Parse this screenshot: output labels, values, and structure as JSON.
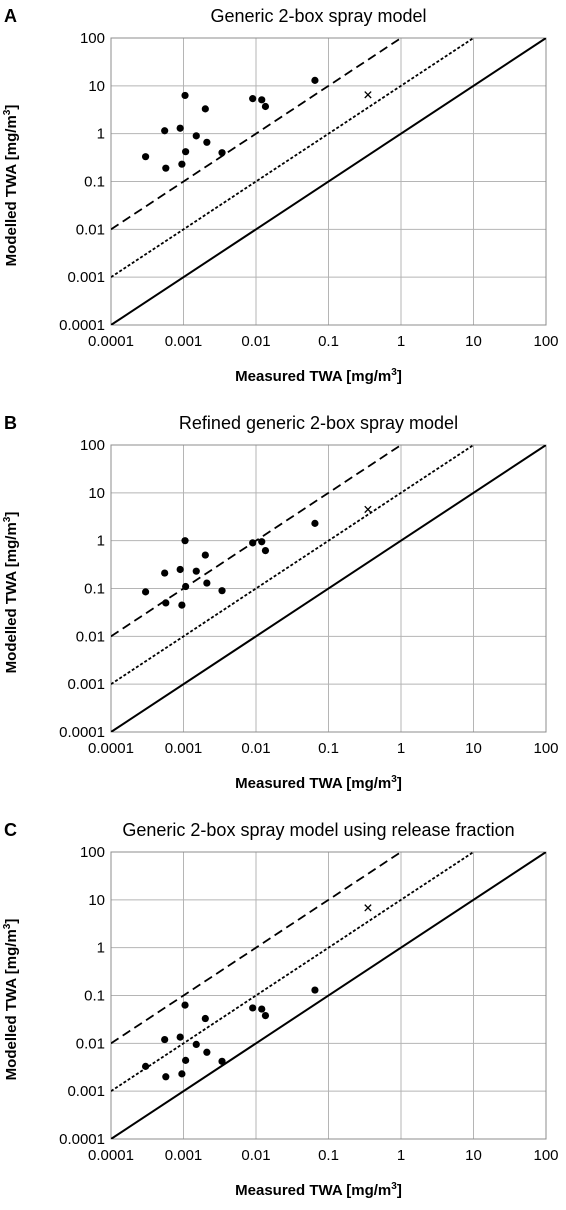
{
  "chart_data": [
    {
      "type": "scatter",
      "panel": "A",
      "title": "Generic 2-box spray model",
      "xlabel": "Measured TWA [mg/m",
      "ylabel": "Modelled TWA [mg/m",
      "unit_superscript": "3",
      "xunit_close": "]",
      "yunit_close": "]",
      "xscale": "log",
      "yscale": "log",
      "xlim": [
        0.0001,
        100
      ],
      "ylim": [
        0.0001,
        100
      ],
      "xticks": [
        "0.0001",
        "0.001",
        "0.01",
        "0.1",
        "1",
        "10",
        "100"
      ],
      "yticks": [
        "0.0001",
        "0.001",
        "0.01",
        "0.1",
        "1",
        "10",
        "100"
      ],
      "grid": true,
      "reference_lines": [
        {
          "style": "solid",
          "factor": 1
        },
        {
          "style": "dotted",
          "factor": 10
        },
        {
          "style": "dashed",
          "factor": 100
        }
      ],
      "series": [
        {
          "marker": "circle",
          "points": [
            {
              "x": 0.0003,
              "y": 0.33
            },
            {
              "x": 0.00055,
              "y": 1.15
            },
            {
              "x": 0.00057,
              "y": 0.19
            },
            {
              "x": 0.0009,
              "y": 1.3
            },
            {
              "x": 0.00095,
              "y": 0.23
            },
            {
              "x": 0.00105,
              "y": 6.3
            },
            {
              "x": 0.00107,
              "y": 0.42
            },
            {
              "x": 0.0015,
              "y": 0.9
            },
            {
              "x": 0.002,
              "y": 3.3
            },
            {
              "x": 0.0021,
              "y": 0.66
            },
            {
              "x": 0.0034,
              "y": 0.4
            },
            {
              "x": 0.009,
              "y": 5.4
            },
            {
              "x": 0.012,
              "y": 5.1
            },
            {
              "x": 0.0135,
              "y": 3.7
            },
            {
              "x": 0.065,
              "y": 13
            }
          ]
        },
        {
          "marker": "cross",
          "points": [
            {
              "x": 0.35,
              "y": 6.5
            }
          ]
        }
      ]
    },
    {
      "type": "scatter",
      "panel": "B",
      "title": "Refined generic 2-box spray model",
      "xlabel": "Measured TWA [mg/m",
      "ylabel": "Modelled TWA [mg/m",
      "unit_superscript": "3",
      "xunit_close": "]",
      "yunit_close": "]",
      "xscale": "log",
      "yscale": "log",
      "xlim": [
        0.0001,
        100
      ],
      "ylim": [
        0.0001,
        100
      ],
      "xticks": [
        "0.0001",
        "0.001",
        "0.01",
        "0.1",
        "1",
        "10",
        "100"
      ],
      "yticks": [
        "0.0001",
        "0.001",
        "0.01",
        "0.1",
        "1",
        "10",
        "100"
      ],
      "grid": true,
      "reference_lines": [
        {
          "style": "solid",
          "factor": 1
        },
        {
          "style": "dotted",
          "factor": 10
        },
        {
          "style": "dashed",
          "factor": 100
        }
      ],
      "series": [
        {
          "marker": "circle",
          "points": [
            {
              "x": 0.0003,
              "y": 0.085
            },
            {
              "x": 0.00055,
              "y": 0.21
            },
            {
              "x": 0.00057,
              "y": 0.05
            },
            {
              "x": 0.0009,
              "y": 0.25
            },
            {
              "x": 0.00095,
              "y": 0.045
            },
            {
              "x": 0.00105,
              "y": 1.0
            },
            {
              "x": 0.00107,
              "y": 0.11
            },
            {
              "x": 0.0015,
              "y": 0.23
            },
            {
              "x": 0.002,
              "y": 0.5
            },
            {
              "x": 0.0021,
              "y": 0.13
            },
            {
              "x": 0.0034,
              "y": 0.09
            },
            {
              "x": 0.009,
              "y": 0.9
            },
            {
              "x": 0.012,
              "y": 0.95
            },
            {
              "x": 0.0135,
              "y": 0.62
            },
            {
              "x": 0.065,
              "y": 2.3
            }
          ]
        },
        {
          "marker": "cross",
          "points": [
            {
              "x": 0.35,
              "y": 4.5
            }
          ]
        }
      ]
    },
    {
      "type": "scatter",
      "panel": "C",
      "title": "Generic 2-box spray model using release fraction",
      "xlabel": "Measured TWA [mg/m",
      "ylabel": "Modelled TWA [mg/m",
      "unit_superscript": "3",
      "xunit_close": "]",
      "yunit_close": "]",
      "xscale": "log",
      "yscale": "log",
      "xlim": [
        0.0001,
        100
      ],
      "ylim": [
        0.0001,
        100
      ],
      "xticks": [
        "0.0001",
        "0.001",
        "0.01",
        "0.1",
        "1",
        "10",
        "100"
      ],
      "yticks": [
        "0.0001",
        "0.001",
        "0.01",
        "0.1",
        "1",
        "10",
        "100"
      ],
      "grid": true,
      "reference_lines": [
        {
          "style": "solid",
          "factor": 1
        },
        {
          "style": "dotted",
          "factor": 10
        },
        {
          "style": "dashed",
          "factor": 100
        }
      ],
      "series": [
        {
          "marker": "circle",
          "points": [
            {
              "x": 0.0003,
              "y": 0.0033
            },
            {
              "x": 0.00055,
              "y": 0.012
            },
            {
              "x": 0.00057,
              "y": 0.002
            },
            {
              "x": 0.0009,
              "y": 0.0135
            },
            {
              "x": 0.00095,
              "y": 0.0023
            },
            {
              "x": 0.00105,
              "y": 0.063
            },
            {
              "x": 0.00107,
              "y": 0.0044
            },
            {
              "x": 0.0015,
              "y": 0.0095
            },
            {
              "x": 0.002,
              "y": 0.033
            },
            {
              "x": 0.0021,
              "y": 0.0065
            },
            {
              "x": 0.0034,
              "y": 0.0042
            },
            {
              "x": 0.009,
              "y": 0.055
            },
            {
              "x": 0.012,
              "y": 0.052
            },
            {
              "x": 0.0135,
              "y": 0.038
            },
            {
              "x": 0.065,
              "y": 0.13
            }
          ]
        },
        {
          "marker": "cross",
          "points": [
            {
              "x": 0.35,
              "y": 6.8
            }
          ]
        }
      ]
    }
  ]
}
